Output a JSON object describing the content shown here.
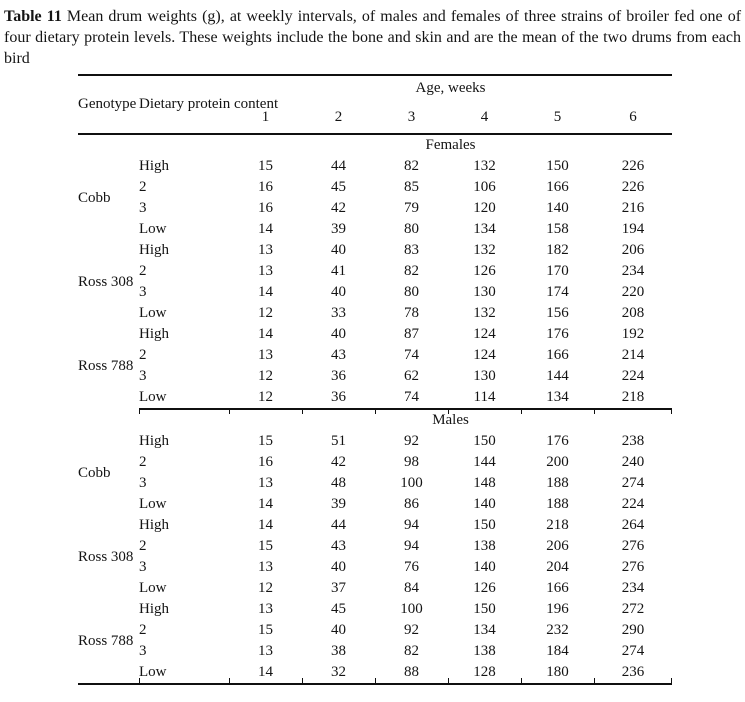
{
  "caption": {
    "label": "Table 11",
    "text": "Mean drum weights (g), at weekly intervals, of males and females of three strains of broiler fed one of four dietary protein levels. These weights include the bone and skin and are the mean of the two drums from each bird"
  },
  "table": {
    "headers": {
      "genotype": "Genotype",
      "protein": "Dietary protein content",
      "age": "Age, weeks",
      "weeks": [
        "1",
        "2",
        "3",
        "4",
        "5",
        "6"
      ]
    },
    "sections": [
      {
        "label": "Females",
        "groups": [
          {
            "genotype": "Cobb",
            "rows": [
              {
                "protein": "High",
                "values": [
                  15,
                  44,
                  82,
                  132,
                  150,
                  226
                ]
              },
              {
                "protein": "2",
                "values": [
                  16,
                  45,
                  85,
                  106,
                  166,
                  226
                ]
              },
              {
                "protein": "3",
                "values": [
                  16,
                  42,
                  79,
                  120,
                  140,
                  216
                ]
              },
              {
                "protein": "Low",
                "values": [
                  14,
                  39,
                  80,
                  134,
                  158,
                  194
                ]
              }
            ]
          },
          {
            "genotype": "Ross 308",
            "rows": [
              {
                "protein": "High",
                "values": [
                  13,
                  40,
                  83,
                  132,
                  182,
                  206
                ]
              },
              {
                "protein": "2",
                "values": [
                  13,
                  41,
                  82,
                  126,
                  170,
                  234
                ]
              },
              {
                "protein": "3",
                "values": [
                  14,
                  40,
                  80,
                  130,
                  174,
                  220
                ]
              },
              {
                "protein": "Low",
                "values": [
                  12,
                  33,
                  78,
                  132,
                  156,
                  208
                ]
              }
            ]
          },
          {
            "genotype": "Ross 788",
            "rows": [
              {
                "protein": "High",
                "values": [
                  14,
                  40,
                  87,
                  124,
                  176,
                  192
                ]
              },
              {
                "protein": "2",
                "values": [
                  13,
                  43,
                  74,
                  124,
                  166,
                  214
                ]
              },
              {
                "protein": "3",
                "values": [
                  12,
                  36,
                  62,
                  130,
                  144,
                  224
                ]
              },
              {
                "protein": "Low",
                "values": [
                  12,
                  36,
                  74,
                  114,
                  134,
                  218
                ]
              }
            ]
          }
        ]
      },
      {
        "label": "Males",
        "groups": [
          {
            "genotype": "Cobb",
            "rows": [
              {
                "protein": "High",
                "values": [
                  15,
                  51,
                  92,
                  150,
                  176,
                  238
                ]
              },
              {
                "protein": "2",
                "values": [
                  16,
                  42,
                  98,
                  144,
                  200,
                  240
                ]
              },
              {
                "protein": "3",
                "values": [
                  13,
                  48,
                  100,
                  148,
                  188,
                  274
                ]
              },
              {
                "protein": "Low",
                "values": [
                  14,
                  39,
                  86,
                  140,
                  188,
                  224
                ]
              }
            ]
          },
          {
            "genotype": "Ross 308",
            "rows": [
              {
                "protein": "High",
                "values": [
                  14,
                  44,
                  94,
                  150,
                  218,
                  264
                ]
              },
              {
                "protein": "2",
                "values": [
                  15,
                  43,
                  94,
                  138,
                  206,
                  276
                ]
              },
              {
                "protein": "3",
                "values": [
                  13,
                  40,
                  76,
                  140,
                  204,
                  276
                ]
              },
              {
                "protein": "Low",
                "values": [
                  12,
                  37,
                  84,
                  126,
                  166,
                  234
                ]
              }
            ]
          },
          {
            "genotype": "Ross 788",
            "rows": [
              {
                "protein": "High",
                "values": [
                  13,
                  45,
                  100,
                  150,
                  196,
                  272
                ]
              },
              {
                "protein": "2",
                "values": [
                  15,
                  40,
                  92,
                  134,
                  232,
                  290
                ]
              },
              {
                "protein": "3",
                "values": [
                  13,
                  38,
                  82,
                  138,
                  184,
                  274
                ]
              },
              {
                "protein": "Low",
                "values": [
                  14,
                  32,
                  88,
                  128,
                  180,
                  236
                ]
              }
            ]
          }
        ]
      }
    ]
  }
}
